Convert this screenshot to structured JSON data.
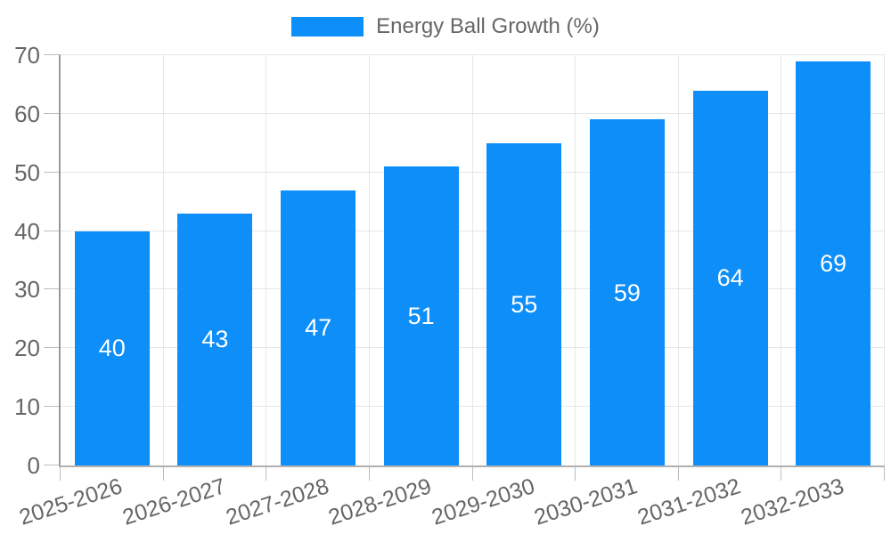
{
  "legend": {
    "label": "Energy Ball Growth (%)",
    "swatch_color": "#0d8ef8"
  },
  "chart_data": {
    "type": "bar",
    "title": "",
    "categories": [
      "2025-2026",
      "2026-2027",
      "2027-2028",
      "2028-2029",
      "2029-2030",
      "2030-2031",
      "2031-2032",
      "2032-2033"
    ],
    "series": [
      {
        "name": "Energy Ball Growth (%)",
        "values": [
          40,
          43,
          47,
          51,
          55,
          59,
          64,
          69
        ]
      }
    ],
    "value_labels": [
      40,
      43,
      47,
      51,
      55,
      59,
      64,
      69
    ],
    "xlabel": "",
    "ylabel": "",
    "ylim": [
      0,
      70
    ],
    "yticks": [
      0,
      10,
      20,
      30,
      40,
      50,
      60,
      70
    ],
    "grid": true,
    "legend_position": "top",
    "colors": {
      "bar": "#0d8ef8",
      "value_label": "#ffffff",
      "tick_label": "#666666",
      "grid": "#e6e6e6",
      "x_axis": "#b0b0b0",
      "y_axis": "#9a9a9a",
      "tick_mark": "#bdbdbd"
    }
  }
}
